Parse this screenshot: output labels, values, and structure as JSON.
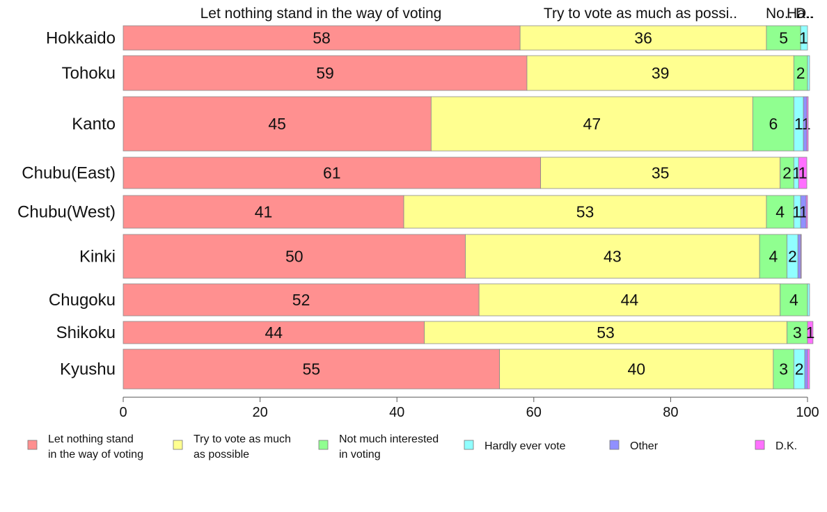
{
  "chart_data": {
    "type": "bar",
    "orientation": "horizontal",
    "stacked": true,
    "xlim": [
      0,
      100
    ],
    "x_ticks": [
      0,
      20,
      40,
      60,
      80,
      100
    ],
    "grid": false,
    "legend_position": "bottom",
    "categories": [
      "Hokkaido",
      "Tohoku",
      "Kanto",
      "Chubu(East)",
      "Chubu(West)",
      "Kinki",
      "Chugoku",
      "Shikoku",
      "Kyushu"
    ],
    "top_labels": [
      "Let nothing stand in the way of voting",
      "Try to vote as much as possi..",
      "No..",
      "Ha..",
      "D.."
    ],
    "series": [
      {
        "name": "Let nothing stand in the way of voting",
        "legend_lines": [
          "Let nothing stand",
          "in the way of voting"
        ],
        "color": "#ff9090",
        "values": [
          58,
          59,
          45,
          61,
          41,
          50,
          52,
          44,
          55
        ],
        "labels": [
          "58",
          "59",
          "45",
          "61",
          "41",
          "50",
          "52",
          "44",
          "55"
        ]
      },
      {
        "name": "Try to vote as much as possible",
        "legend_lines": [
          "Try to vote as much",
          "as possible"
        ],
        "color": "#ffff90",
        "values": [
          36,
          39,
          47,
          35,
          53,
          43,
          44,
          53,
          40
        ],
        "labels": [
          "36",
          "39",
          "47",
          "35",
          "53",
          "43",
          "44",
          "53",
          "40"
        ]
      },
      {
        "name": "Not much interested in voting",
        "legend_lines": [
          "Not much interested",
          "in voting"
        ],
        "color": "#90ff90",
        "values": [
          5,
          2,
          6,
          2,
          4,
          4,
          4,
          3,
          3
        ],
        "labels": [
          "5",
          "2",
          "6",
          "2",
          "4",
          "4",
          "4",
          "3",
          "3"
        ]
      },
      {
        "name": "Hardly ever vote",
        "legend_lines": [
          "Hardly ever vote"
        ],
        "color": "#90ffff",
        "values": [
          1,
          0.3,
          1.4,
          0.7,
          1,
          1.6,
          0.3,
          0,
          1.6
        ],
        "labels": [
          "1",
          "",
          "1",
          "1",
          "1",
          "2",
          "",
          "",
          "2"
        ]
      },
      {
        "name": "Other",
        "legend_lines": [
          "Other"
        ],
        "color": "#9090ff",
        "values": [
          0,
          0,
          0.5,
          0,
          0.8,
          0.4,
          0,
          0,
          0.4
        ],
        "labels": [
          "",
          "",
          "1",
          "",
          "1",
          "",
          "",
          "",
          ""
        ]
      },
      {
        "name": "D.K.",
        "legend_lines": [
          "D.K."
        ],
        "color": "#ff70ff",
        "values": [
          0,
          0,
          0.2,
          1.2,
          0.2,
          0.1,
          0,
          0.8,
          0.3
        ],
        "labels": [
          "",
          "",
          "",
          "1",
          "",
          "",
          "",
          "1",
          ""
        ]
      }
    ]
  }
}
